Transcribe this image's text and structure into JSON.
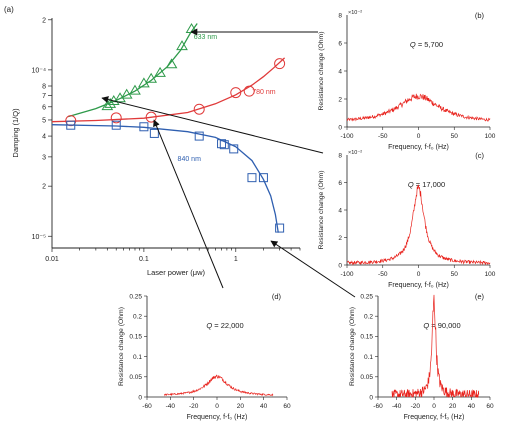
{
  "chart_data": [
    {
      "panel": "(a)",
      "type": "scatter",
      "xlabel": "Laser power (μw)",
      "ylabel": "Damping (1/Q)",
      "xscale": "log",
      "yscale": "log",
      "xlim": [
        0.01,
        5
      ],
      "ylim": [
        8.5e-06,
        0.000205
      ],
      "x_ticks": [
        {
          "v": 0.01,
          "l": "0.01"
        },
        {
          "v": 0.1,
          "l": "0.1"
        },
        {
          "v": 1,
          "l": "1"
        }
      ],
      "y_ticks": [
        {
          "v": 1e-05,
          "l": "10⁻⁵"
        },
        {
          "v": 2e-05,
          "l": "2"
        },
        {
          "v": 3e-05,
          "l": "3"
        },
        {
          "v": 4e-05,
          "l": "4"
        },
        {
          "v": 5e-05,
          "l": "5"
        },
        {
          "v": 6e-05,
          "l": "6"
        },
        {
          "v": 7e-05,
          "l": "7"
        },
        {
          "v": 8e-05,
          "l": "8"
        },
        {
          "v": 0.0001,
          "l": "10⁻⁴"
        },
        {
          "v": 0.0002,
          "l": "2"
        }
      ],
      "series": [
        {
          "name": "633 nm",
          "marker": "triangle",
          "color": "#2e9a4a",
          "x": [
            0.04,
            0.043,
            0.047,
            0.055,
            0.065,
            0.08,
            0.1,
            0.12,
            0.15,
            0.2,
            0.26,
            0.33
          ],
          "y": [
            6.05e-05,
            6.25e-05,
            6.5e-05,
            6.75e-05,
            7.1e-05,
            7.5e-05,
            8.3e-05,
            8.85e-05,
            9.6e-05,
            0.000108,
            0.000139,
            0.000176
          ],
          "fit_x": [
            0.015,
            0.03,
            0.05,
            0.08,
            0.12,
            0.18,
            0.25,
            0.32,
            0.38
          ],
          "fit_y": [
            5.24e-05,
            5.85e-05,
            6.55e-05,
            7.45e-05,
            8.65e-05,
            0.0001045,
            0.000131,
            0.000166,
            0.00019
          ]
        },
        {
          "name": "780 nm",
          "marker": "circle",
          "color": "#e03a3a",
          "x": [
            0.016,
            0.05,
            0.12,
            0.4,
            1.0,
            1.4,
            3.0
          ],
          "y": [
            4.95e-05,
            5.15e-05,
            5.2e-05,
            5.8e-05,
            7.3e-05,
            7.45e-05,
            0.000109
          ],
          "fit_x": [
            0.01,
            0.03,
            0.1,
            0.3,
            0.6,
            1.0,
            1.5,
            2.0,
            2.6,
            3.4
          ],
          "fit_y": [
            4.88e-05,
            4.96e-05,
            5.12e-05,
            5.54e-05,
            6.25e-05,
            7.08e-05,
            8.1e-05,
            9.1e-05,
            0.000103,
            0.000118
          ]
        },
        {
          "name": "840 nm",
          "marker": "square",
          "color": "#2f5fb0",
          "x": [
            0.016,
            0.05,
            0.1,
            0.13,
            0.4,
            0.7,
            0.75,
            0.95,
            1.5,
            2.0,
            3.0
          ],
          "y": [
            4.65e-05,
            4.65e-05,
            4.55e-05,
            4.15e-05,
            4e-05,
            3.6e-05,
            3.55e-05,
            3.35e-05,
            2.25e-05,
            2.25e-05,
            1.12e-05
          ],
          "fit_x": [
            0.01,
            0.05,
            0.1,
            0.3,
            0.6,
            1.0,
            1.5,
            2.0,
            2.4,
            2.7,
            2.9
          ],
          "fit_y": [
            4.68e-05,
            4.6e-05,
            4.52e-05,
            4.25e-05,
            3.93e-05,
            3.45e-05,
            2.85e-05,
            2.2e-05,
            1.75e-05,
            1.35e-05,
            1.05e-05
          ]
        }
      ]
    },
    {
      "panel": "(b)",
      "type": "line",
      "xlabel": "Frequency, f-f₀ (Hz)",
      "ylabel": "Resistance change (Ohm)",
      "xlim": [
        -100,
        100
      ],
      "ylim": [
        0,
        8
      ],
      "x_ticks": [
        -100,
        -50,
        0,
        50,
        100
      ],
      "y_ticks": [
        0,
        2,
        4,
        6
      ],
      "y_exp": "×10⁻²",
      "y_top_label": "8",
      "annotation": "= 5,700",
      "peak": 1.9,
      "halfwidth": 35,
      "noise": 0.15,
      "base": 0.3
    },
    {
      "panel": "(c)",
      "type": "line",
      "xlabel": "Frequency, f-f₀ (Hz)",
      "ylabel": "Resistance change (Ohm)",
      "xlim": [
        -100,
        100
      ],
      "ylim": [
        0,
        8
      ],
      "x_ticks": [
        -100,
        -50,
        0,
        50,
        100
      ],
      "y_ticks": [
        0,
        2,
        4,
        6
      ],
      "y_exp": "×10⁻²",
      "y_top_label": "8",
      "annotation": "= 17,000",
      "peak": 5.5,
      "halfwidth": 10,
      "noise": 0.2,
      "base": 0.1
    },
    {
      "panel": "(d)",
      "type": "line",
      "xlabel": "Frequency, f-f₀ (Hz)",
      "ylabel": "Resistance change (Ohm)",
      "xlim": [
        -60,
        60
      ],
      "ylim": [
        0,
        0.25
      ],
      "x_ticks": [
        -60,
        -40,
        -20,
        0,
        20,
        40,
        60
      ],
      "y_ticks": [
        0,
        0.05,
        0.1,
        0.15,
        0.2,
        0.25
      ],
      "annotation": "= 22,000",
      "peak": 0.048,
      "halfwidth": 11,
      "noise": 0.003,
      "base": 0.003
    },
    {
      "panel": "(e)",
      "type": "line",
      "xlabel": "Frequency, f-f₀ (Hz)",
      "ylabel": "Resistance change (Ohm)",
      "xlim": [
        -60,
        60
      ],
      "ylim": [
        0,
        0.25
      ],
      "x_ticks": [
        -60,
        -40,
        -20,
        0,
        20,
        40,
        60
      ],
      "y_ticks": [
        0,
        0.05,
        0.1,
        0.15,
        0.2,
        0.25
      ],
      "annotation": "= 90,000",
      "peak": 0.23,
      "halfwidth": 2.5,
      "noise": 0.02,
      "base": 0.005
    }
  ],
  "annotation_prefix": "Q",
  "colors": {
    "axis": "#222222",
    "trace": "#e8211b",
    "arrow": "#111111"
  }
}
